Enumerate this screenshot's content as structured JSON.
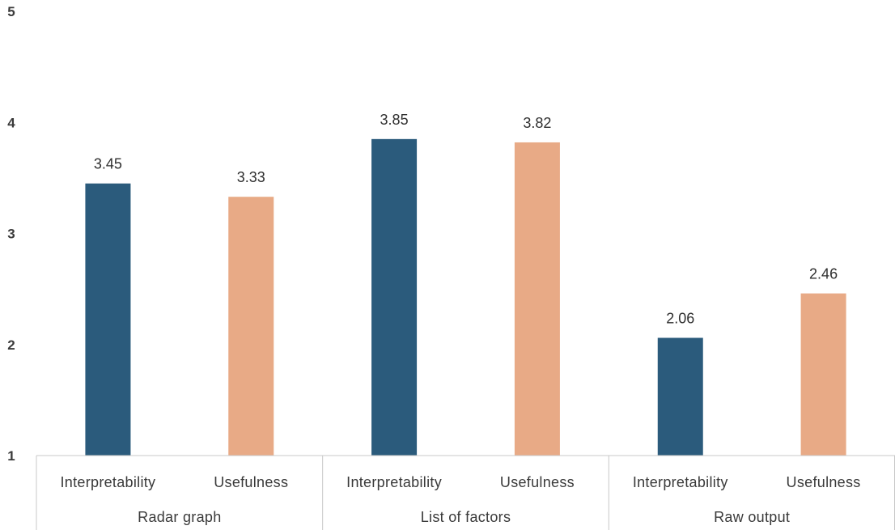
{
  "chart_data": {
    "type": "bar",
    "title": "",
    "xlabel": "",
    "ylabel": "",
    "ylim": [
      1,
      5
    ],
    "yticks": [
      1,
      2,
      3,
      4,
      5
    ],
    "grid": false,
    "legend": "none",
    "colors": {
      "Interpretability": "#2b5b7c",
      "Usefulness": "#e8aa86"
    },
    "groups": [
      {
        "name": "Radar graph",
        "bars": [
          {
            "category": "Interpretability",
            "value": 3.45,
            "label": "3.45"
          },
          {
            "category": "Usefulness",
            "value": 3.33,
            "label": "3.33"
          }
        ]
      },
      {
        "name": "List of factors",
        "bars": [
          {
            "category": "Interpretability",
            "value": 3.85,
            "label": "3.85"
          },
          {
            "category": "Usefulness",
            "value": 3.82,
            "label": "3.82"
          }
        ]
      },
      {
        "name": "Raw output",
        "bars": [
          {
            "category": "Interpretability",
            "value": 2.06,
            "label": "2.06"
          },
          {
            "category": "Usefulness",
            "value": 2.46,
            "label": "2.46"
          }
        ]
      }
    ]
  }
}
